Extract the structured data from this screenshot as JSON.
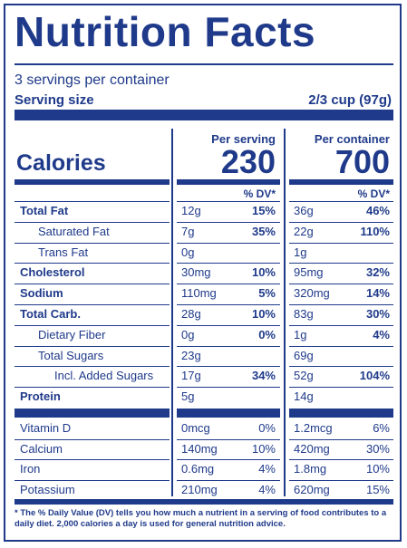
{
  "title": "Nutrition Facts",
  "servings_per_container": "3 servings per container",
  "serving_size_label": "Serving size",
  "serving_size_value": "2/3 cup (97g)",
  "calories_label": "Calories",
  "col_per_serving": "Per serving",
  "col_per_container": "Per container",
  "calories_per_serving": "230",
  "calories_per_container": "700",
  "dv_header": "% DV*",
  "rows": [
    {
      "name": "Total Fat",
      "bold": true,
      "ps_amt": "12g",
      "ps_dv": "15%",
      "pc_amt": "36g",
      "pc_dv": "46%"
    },
    {
      "name": "Saturated Fat",
      "bold": false,
      "ps_amt": "7g",
      "ps_dv": "35%",
      "pc_amt": "22g",
      "pc_dv": "110%"
    },
    {
      "name": "Trans Fat",
      "bold": false,
      "ps_amt": "0g",
      "ps_dv": "",
      "pc_amt": "1g",
      "pc_dv": ""
    },
    {
      "name": "Cholesterol",
      "bold": true,
      "ps_amt": "30mg",
      "ps_dv": "10%",
      "pc_amt": "95mg",
      "pc_dv": "32%"
    },
    {
      "name": "Sodium",
      "bold": true,
      "ps_amt": "110mg",
      "ps_dv": "5%",
      "pc_amt": "320mg",
      "pc_dv": "14%"
    },
    {
      "name": "Total Carb.",
      "bold": true,
      "ps_amt": "28g",
      "ps_dv": "10%",
      "pc_amt": "83g",
      "pc_dv": "30%"
    },
    {
      "name": "Dietary Fiber",
      "bold": false,
      "ps_amt": "0g",
      "ps_dv": "0%",
      "pc_amt": "1g",
      "pc_dv": "4%"
    },
    {
      "name": "Total Sugars",
      "bold": false,
      "ps_amt": "23g",
      "ps_dv": "",
      "pc_amt": "69g",
      "pc_dv": ""
    },
    {
      "name": "Incl. Added Sugars",
      "bold": false,
      "ps_amt": "17g",
      "ps_dv": "34%",
      "pc_amt": "52g",
      "pc_dv": "104%"
    },
    {
      "name": "Protein",
      "bold": true,
      "ps_amt": "5g",
      "ps_dv": "",
      "pc_amt": "14g",
      "pc_dv": ""
    }
  ],
  "vitamins": [
    {
      "name": "Vitamin D",
      "ps_amt": "0mcg",
      "ps_dv": "0%",
      "pc_amt": "1.2mcg",
      "pc_dv": "6%"
    },
    {
      "name": "Calcium",
      "ps_amt": "140mg",
      "ps_dv": "10%",
      "pc_amt": "420mg",
      "pc_dv": "30%"
    },
    {
      "name": "Iron",
      "ps_amt": "0.6mg",
      "ps_dv": "4%",
      "pc_amt": "1.8mg",
      "pc_dv": "10%"
    },
    {
      "name": "Potassium",
      "ps_amt": "210mg",
      "ps_dv": "4%",
      "pc_amt": "620mg",
      "pc_dv": "15%"
    }
  ],
  "footnote": "* The % Daily Value (DV) tells you how much a nutrient in a serving of food contributes to a daily diet. 2,000 calories a day is used for general nutrition advice."
}
